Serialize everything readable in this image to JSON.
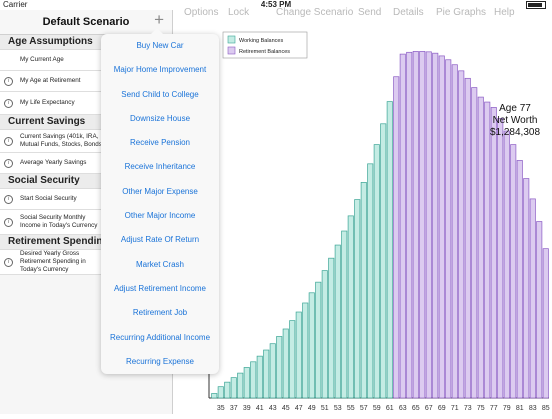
{
  "status_bar": {
    "carrier": "Carrier",
    "time": "4:53 PM"
  },
  "sidebar": {
    "title": "Default Scenario",
    "add_icon": "plus-icon",
    "sections": [
      {
        "title": "Age Assumptions",
        "rows": [
          {
            "label": "My Current Age",
            "info": false
          },
          {
            "label": "My Age at Retirement",
            "info": true
          },
          {
            "label": "My Life Expectancy",
            "info": true
          }
        ]
      },
      {
        "title": "Current Savings",
        "rows": [
          {
            "label": "Current Savings (401k, IRA, Mutual Funds, Stocks, Bonds",
            "info": true
          },
          {
            "label": "Average Yearly Savings",
            "info": true
          }
        ]
      },
      {
        "title": "Social Security",
        "rows": [
          {
            "label": "Start Social Security",
            "info": true
          },
          {
            "label": "Social Security Monthly Income in Today's Currency",
            "info": true
          }
        ]
      },
      {
        "title": "Retirement Spending",
        "rows": [
          {
            "label": "Desired Yearly Gross Retirement Spending in Today's Currency",
            "info": true
          }
        ]
      }
    ]
  },
  "toolbar": {
    "options": "Options",
    "lock": "Lock",
    "change_scenario": "Change Scenario",
    "send": "Send",
    "details": "Details",
    "pie_graphs": "Pie Graphs",
    "help": "Help"
  },
  "popover": {
    "items": [
      "Buy New Car",
      "Major Home Improvement",
      "Send Child to College",
      "Downsize House",
      "Receive Pension",
      "Receive Inheritance",
      "Other Major Expense",
      "Other Major Income",
      "Adjust Rate Of Return",
      "Market Crash",
      "Adjust Retirement Income",
      "Retirement Job",
      "Recurring Additional Income",
      "Recurring Expense"
    ]
  },
  "chart_data": {
    "type": "bar",
    "legend": {
      "placement": "top-left",
      "entries": [
        {
          "name": "Working Balances",
          "color": "#c4ece4"
        },
        {
          "name": "Retirement Balances",
          "color": "#dccbf0"
        }
      ]
    },
    "x_ticks": [
      "35",
      "37",
      "39",
      "41",
      "43",
      "45",
      "47",
      "49",
      "51",
      "53",
      "55",
      "57",
      "59",
      "61",
      "63",
      "65",
      "67",
      "69",
      "71",
      "73",
      "75",
      "77",
      "79",
      "81",
      "83",
      "85"
    ],
    "retirement_age": 62,
    "series": [
      {
        "name": "Working Balances",
        "x": [
          34,
          35,
          36,
          37,
          38,
          39,
          40,
          41,
          42,
          43,
          44,
          45,
          46,
          47,
          48,
          49,
          50,
          51,
          52,
          53,
          54,
          55,
          56,
          57,
          58,
          59,
          60,
          61
        ],
        "values": [
          20000,
          50000,
          70000,
          90000,
          110000,
          135000,
          160000,
          185000,
          212000,
          240000,
          272000,
          305000,
          342000,
          380000,
          420000,
          465000,
          512000,
          563000,
          618000,
          676000,
          738000,
          805000,
          877000,
          953000,
          1035000,
          1120000,
          1212000,
          1310000
        ]
      },
      {
        "name": "Retirement Balances",
        "x": [
          62,
          63,
          64,
          65,
          66,
          67,
          68,
          69,
          70,
          71,
          72,
          73,
          74,
          75,
          76,
          77,
          78,
          79,
          80,
          81,
          82,
          83,
          84,
          85
        ],
        "values": [
          1420000,
          1520000,
          1528000,
          1532000,
          1532000,
          1530000,
          1524000,
          1512000,
          1495000,
          1473000,
          1446000,
          1413000,
          1372000,
          1330000,
          1308000,
          1284308,
          1235000,
          1180000,
          1120000,
          1050000,
          970000,
          880000,
          780000,
          660000
        ]
      }
    ],
    "annotation": {
      "line1": "Age 77",
      "line2": "Net Worth",
      "line3": "$1,284,308"
    },
    "ylim": [
      0,
      1600000
    ]
  }
}
